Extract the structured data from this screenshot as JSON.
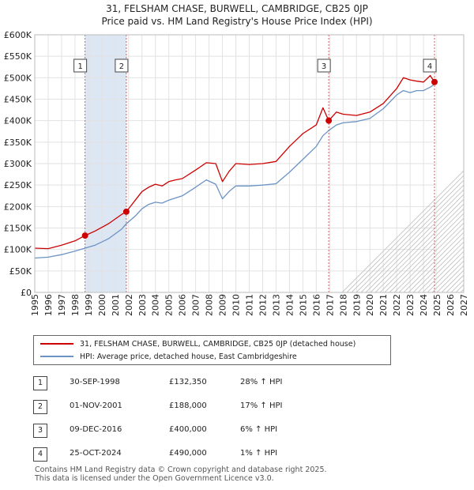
{
  "chart_data": {
    "type": "line",
    "title": "31, FELSHAM CHASE, BURWELL, CAMBRIDGE, CB25 0JP",
    "subtitle": "Price paid vs. HM Land Registry's House Price Index (HPI)",
    "xlabel": "",
    "ylabel": "",
    "xlim": [
      1995,
      2027
    ],
    "ylim": [
      0,
      600000
    ],
    "x_ticks": [
      1995,
      1996,
      1997,
      1998,
      1999,
      2000,
      2001,
      2002,
      2003,
      2004,
      2005,
      2006,
      2007,
      2008,
      2009,
      2010,
      2011,
      2012,
      2013,
      2014,
      2015,
      2016,
      2017,
      2018,
      2019,
      2020,
      2021,
      2022,
      2023,
      2024,
      2025,
      2026,
      2027
    ],
    "y_ticks": [
      0,
      50000,
      100000,
      150000,
      200000,
      250000,
      300000,
      350000,
      400000,
      450000,
      500000,
      550000,
      600000
    ],
    "y_tick_labels": [
      "£0",
      "£50K",
      "£100K",
      "£150K",
      "£200K",
      "£250K",
      "£300K",
      "£350K",
      "£400K",
      "£450K",
      "£500K",
      "£550K",
      "£600K"
    ],
    "grid": true,
    "data_end_year": 2025.0,
    "shaded_periods": [
      [
        1998.75,
        2001.83
      ]
    ],
    "colors": {
      "property": "#cc0000",
      "hpi": "#6b93c4",
      "marker_line": "#e05a5a",
      "shade": "#dde6f3"
    },
    "series": [
      {
        "name": "31, FELSHAM CHASE, BURWELL, CAMBRIDGE, CB25 0JP (detached house)",
        "color": "#cc0000",
        "x": [
          1995.0,
          1996.0,
          1997.0,
          1998.0,
          1998.75,
          1999.5,
          2000.5,
          2001.5,
          2001.83,
          2002.5,
          2003.0,
          2003.5,
          2004.0,
          2004.5,
          2005.0,
          2005.5,
          2006.0,
          2007.0,
          2007.8,
          2008.5,
          2009.0,
          2009.5,
          2010.0,
          2011.0,
          2012.0,
          2013.0,
          2014.0,
          2015.0,
          2016.0,
          2016.5,
          2016.93,
          2017.5,
          2018.0,
          2019.0,
          2020.0,
          2021.0,
          2022.0,
          2022.5,
          2023.0,
          2023.5,
          2024.0,
          2024.5,
          2024.82,
          2025.0
        ],
        "y": [
          103000,
          102000,
          110000,
          120000,
          132350,
          143000,
          160000,
          182000,
          188000,
          215000,
          235000,
          245000,
          252000,
          248000,
          258000,
          262000,
          265000,
          285000,
          302000,
          300000,
          258000,
          282000,
          300000,
          298000,
          300000,
          305000,
          340000,
          370000,
          390000,
          430000,
          400000,
          420000,
          415000,
          412000,
          420000,
          440000,
          475000,
          500000,
          495000,
          492000,
          490000,
          505000,
          490000,
          495000
        ]
      },
      {
        "name": "HPI: Average price, detached house, East Cambridgeshire",
        "color": "#6b93c4",
        "x": [
          1995.0,
          1996.0,
          1997.0,
          1998.0,
          1998.75,
          1999.5,
          2000.5,
          2001.5,
          2001.83,
          2002.5,
          2003.0,
          2003.5,
          2004.0,
          2004.5,
          2005.0,
          2005.5,
          2006.0,
          2007.0,
          2007.8,
          2008.5,
          2009.0,
          2009.5,
          2010.0,
          2011.0,
          2012.0,
          2013.0,
          2014.0,
          2015.0,
          2016.0,
          2016.5,
          2016.93,
          2017.5,
          2018.0,
          2019.0,
          2020.0,
          2021.0,
          2022.0,
          2022.5,
          2023.0,
          2023.5,
          2024.0,
          2024.5,
          2024.82,
          2025.0
        ],
        "y": [
          80000,
          82000,
          88000,
          96000,
          103000,
          110000,
          125000,
          148000,
          160000,
          178000,
          195000,
          205000,
          210000,
          208000,
          215000,
          220000,
          225000,
          245000,
          262000,
          252000,
          218000,
          235000,
          248000,
          248000,
          250000,
          253000,
          280000,
          310000,
          340000,
          365000,
          377000,
          390000,
          395000,
          398000,
          405000,
          428000,
          460000,
          470000,
          465000,
          470000,
          470000,
          478000,
          485000,
          488000
        ]
      }
    ],
    "sale_markers": [
      {
        "label": "1",
        "x": 1998.75,
        "y": 132350
      },
      {
        "label": "2",
        "x": 2001.83,
        "y": 188000
      },
      {
        "label": "3",
        "x": 2016.93,
        "y": 400000
      },
      {
        "label": "4",
        "x": 2024.82,
        "y": 490000
      }
    ]
  },
  "legend": {
    "property": "31, FELSHAM CHASE, BURWELL, CAMBRIDGE, CB25 0JP (detached house)",
    "hpi": "HPI: Average price, detached house, East Cambridgeshire"
  },
  "sales": [
    {
      "num": "1",
      "date": "30-SEP-1998",
      "price": "£132,350",
      "hpi": "28% ↑ HPI"
    },
    {
      "num": "2",
      "date": "01-NOV-2001",
      "price": "£188,000",
      "hpi": "17% ↑ HPI"
    },
    {
      "num": "3",
      "date": "09-DEC-2016",
      "price": "£400,000",
      "hpi": "6% ↑ HPI"
    },
    {
      "num": "4",
      "date": "25-OCT-2024",
      "price": "£490,000",
      "hpi": "1% ↑ HPI"
    }
  ],
  "footer": {
    "line1": "Contains HM Land Registry data © Crown copyright and database right 2025.",
    "line2": "This data is licensed under the Open Government Licence v3.0."
  }
}
